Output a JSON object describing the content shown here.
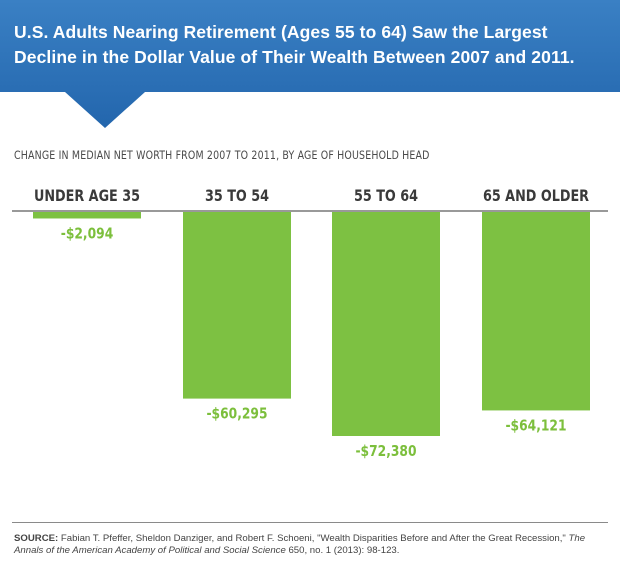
{
  "header": {
    "title": "U.S. Adults Nearing Retirement (Ages 55 to 64) Saw the Largest Decline in the Dollar Value of Their Wealth Between 2007 and 2011."
  },
  "colors": {
    "banner_blue": "#2d72b8",
    "bar_green": "#7dc142",
    "value_label_green": "#7cbf3c"
  },
  "chart_data": {
    "type": "bar",
    "subtitle": "CHANGE IN MEDIAN NET WORTH FROM 2007 TO 2011, BY AGE OF HOUSEHOLD HEAD",
    "categories": [
      "UNDER AGE 35",
      "35 TO 54",
      "55 TO 64",
      "65 AND OLDER"
    ],
    "values": [
      -2094,
      -60295,
      -72380,
      -64121
    ],
    "value_labels": [
      "-$2,094",
      "-$60,295",
      "-$72,380",
      "-$64,121"
    ],
    "ylim": [
      -75000,
      0
    ],
    "grid": false,
    "legend": "none"
  },
  "source": {
    "label": "SOURCE:",
    "text_before": "Fabian T. Pfeffer, Sheldon Danziger, and Robert F. Schoeni, \"Wealth Disparities Before and After the Great Recession,\"",
    "journal": "The Annals of the American Academy of Political and Social Science",
    "text_after": "650, no. 1 (2013): 98-123."
  }
}
